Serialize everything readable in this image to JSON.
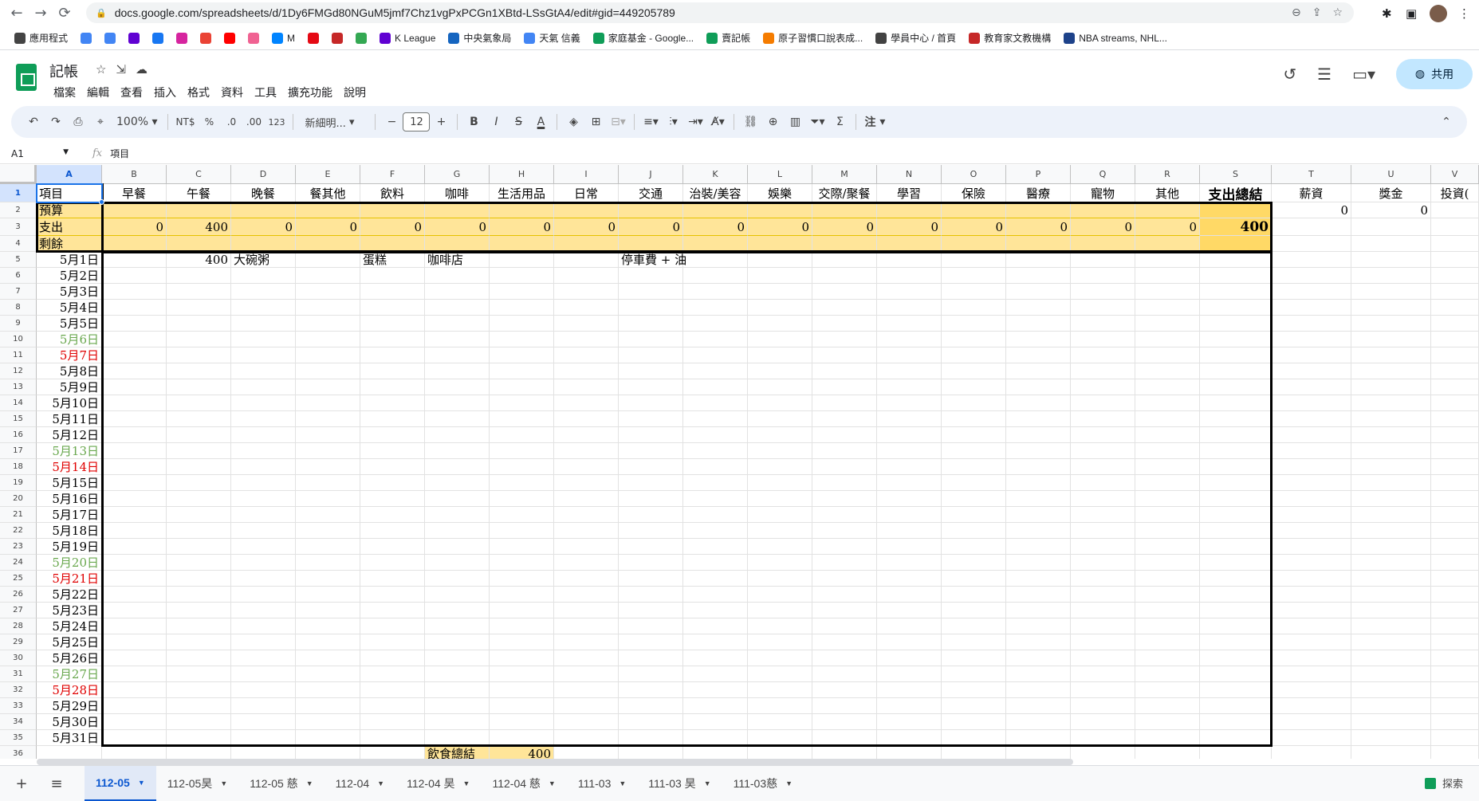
{
  "browser": {
    "url": "docs.google.com/spreadsheets/d/1Dy6FMGd80NGuM5jmf7Chz1vgPxPCGn1XBtd-LSsGtA4/edit#gid=449205789"
  },
  "bookmarks": [
    {
      "label": "應用程式",
      "icon": "apps-icon",
      "color": "#444"
    },
    {
      "label": "",
      "icon": "google-icon",
      "color": "#4285f4"
    },
    {
      "label": "",
      "icon": "translate-icon",
      "color": "#4285f4"
    },
    {
      "label": "",
      "icon": "yahoo-icon",
      "color": "#6001d2"
    },
    {
      "label": "",
      "icon": "facebook-icon",
      "color": "#1877f2"
    },
    {
      "label": "",
      "icon": "instagram-icon",
      "color": "#d6249f"
    },
    {
      "label": "",
      "icon": "gmail-icon",
      "color": "#ea4335"
    },
    {
      "label": "",
      "icon": "youtube-icon",
      "color": "#ff0000"
    },
    {
      "label": "",
      "icon": "bookmark-icon",
      "color": "#f06292"
    },
    {
      "label": "M",
      "icon": "messenger-icon",
      "color": "#0084ff"
    },
    {
      "label": "",
      "icon": "netflix-icon",
      "color": "#e50914"
    },
    {
      "label": "",
      "icon": "app-icon",
      "color": "#c62828"
    },
    {
      "label": "",
      "icon": "maps-icon",
      "color": "#34a853"
    },
    {
      "label": "K League",
      "icon": "yahoo-icon",
      "color": "#6001d2"
    },
    {
      "label": "中央氣象局",
      "icon": "cwb-icon",
      "color": "#1565c0"
    },
    {
      "label": "天氣 信義",
      "icon": "google-icon",
      "color": "#4285f4"
    },
    {
      "label": "家庭基金 - Google...",
      "icon": "sheets-icon",
      "color": "#0f9d58"
    },
    {
      "label": "賣記帳",
      "icon": "sheets-icon",
      "color": "#0f9d58"
    },
    {
      "label": "原子習慣口說表成...",
      "icon": "play-icon",
      "color": "#f57c00"
    },
    {
      "label": "學員中心 / 首頁",
      "icon": "school-icon",
      "color": "#424242"
    },
    {
      "label": "教育家文教機構",
      "icon": "edu-icon",
      "color": "#c62828"
    },
    {
      "label": "NBA streams, NHL...",
      "icon": "nba-icon",
      "color": "#1d428a"
    }
  ],
  "doc": {
    "title": "記帳",
    "menus": [
      "檔案",
      "編輯",
      "查看",
      "插入",
      "格式",
      "資料",
      "工具",
      "擴充功能",
      "說明"
    ],
    "share_label": "共用"
  },
  "toolbar": {
    "zoom": "100%",
    "currency": "NT$",
    "percent": "%",
    "dec_less": ".0",
    "dec_more": ".00",
    "format_123": "123",
    "font": "新細明...",
    "font_size": "12",
    "bold": "B",
    "italic": "I",
    "strike": "S",
    "text_color": "A",
    "sum": "Σ",
    "comment_label": "注"
  },
  "formula": {
    "cell_ref": "A1",
    "value": "項目"
  },
  "columns": [
    "A",
    "B",
    "C",
    "D",
    "E",
    "F",
    "G",
    "H",
    "I",
    "J",
    "K",
    "L",
    "M",
    "N",
    "O",
    "P",
    "Q",
    "R",
    "S",
    "T",
    "U",
    "V"
  ],
  "header_row": [
    "項目",
    "早餐",
    "午餐",
    "晚餐",
    "餐其他",
    "飲料",
    "咖啡",
    "生活用品",
    "日常",
    "交通",
    "治裝/美容",
    "娛樂",
    "交際/聚餐",
    "學習",
    "保險",
    "醫療",
    "寵物",
    "其他",
    "支出總結",
    "薪資",
    "獎金",
    "投資("
  ],
  "summary": {
    "budget_label": "預算",
    "spend_label": "支出",
    "remain_label": "剩餘",
    "spend_values": [
      "0",
      "400",
      "0",
      "0",
      "0",
      "0",
      "0",
      "0",
      "0",
      "0",
      "0",
      "0",
      "0",
      "0",
      "0",
      "0",
      "0"
    ],
    "total": "400",
    "income_values": [
      "0",
      "0"
    ]
  },
  "row5": {
    "lunch": "400",
    "dinner_note": "大碗粥",
    "drink_note": "蛋糕",
    "coffee_note": "咖啡店",
    "transport_note": "停車費 + 油"
  },
  "dates": [
    {
      "label": "5月1日",
      "style": ""
    },
    {
      "label": "5月2日",
      "style": ""
    },
    {
      "label": "5月3日",
      "style": ""
    },
    {
      "label": "5月4日",
      "style": ""
    },
    {
      "label": "5月5日",
      "style": ""
    },
    {
      "label": "5月6日",
      "style": "green"
    },
    {
      "label": "5月7日",
      "style": "red"
    },
    {
      "label": "5月8日",
      "style": ""
    },
    {
      "label": "5月9日",
      "style": ""
    },
    {
      "label": "5月10日",
      "style": ""
    },
    {
      "label": "5月11日",
      "style": ""
    },
    {
      "label": "5月12日",
      "style": ""
    },
    {
      "label": "5月13日",
      "style": "green"
    },
    {
      "label": "5月14日",
      "style": "red"
    },
    {
      "label": "5月15日",
      "style": ""
    },
    {
      "label": "5月16日",
      "style": ""
    },
    {
      "label": "5月17日",
      "style": ""
    },
    {
      "label": "5月18日",
      "style": ""
    },
    {
      "label": "5月19日",
      "style": ""
    },
    {
      "label": "5月20日",
      "style": "green"
    },
    {
      "label": "5月21日",
      "style": "red"
    },
    {
      "label": "5月22日",
      "style": ""
    },
    {
      "label": "5月23日",
      "style": ""
    },
    {
      "label": "5月24日",
      "style": ""
    },
    {
      "label": "5月25日",
      "style": ""
    },
    {
      "label": "5月26日",
      "style": ""
    },
    {
      "label": "5月27日",
      "style": "green"
    },
    {
      "label": "5月28日",
      "style": "red"
    },
    {
      "label": "5月29日",
      "style": ""
    },
    {
      "label": "5月30日",
      "style": ""
    },
    {
      "label": "5月31日",
      "style": ""
    }
  ],
  "row36": {
    "label": "飲食總結",
    "value": "400"
  },
  "sheets": [
    {
      "label": "112-05",
      "active": true
    },
    {
      "label": "112-05昊",
      "active": false
    },
    {
      "label": "112-05 慈",
      "active": false
    },
    {
      "label": "112-04",
      "active": false
    },
    {
      "label": "112-04 昊",
      "active": false
    },
    {
      "label": "112-04 慈",
      "active": false
    },
    {
      "label": "111-03",
      "active": false
    },
    {
      "label": "111-03 昊",
      "active": false
    },
    {
      "label": "111-03慈",
      "active": false
    }
  ],
  "explore_label": "探索"
}
